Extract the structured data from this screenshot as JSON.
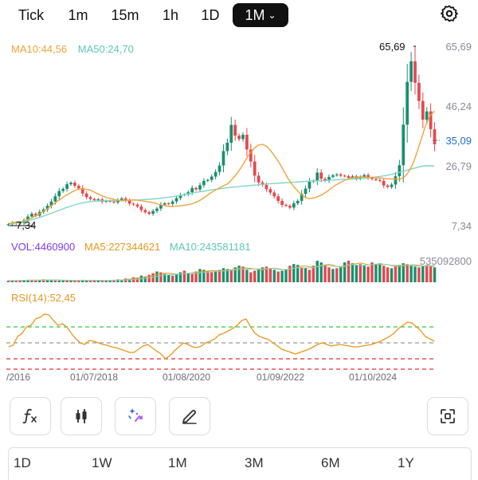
{
  "timeframe_tabs": [
    {
      "label": "Tick"
    },
    {
      "label": "1m"
    },
    {
      "label": "15m"
    },
    {
      "label": "1h"
    },
    {
      "label": "1D"
    },
    {
      "label": "1M"
    }
  ],
  "active_tab_chevron": "⌄",
  "colors": {
    "up": "#1a8f6e",
    "down": "#e5484d",
    "ma10": "#f0a33a",
    "ma50": "#7fd6c6",
    "vol_ma5": "#e8971d",
    "vol_ma10": "#7fd6c6",
    "rsi": "#e8971d",
    "rsi_upper": "#2ecc40",
    "rsi_mid": "#9a9a9a",
    "rsi_lower": "#e03131",
    "accent_price": "#1f6fd1",
    "vol_label": "#7c3aed"
  },
  "price_panel": {
    "ma10_label": "MA10:44,56",
    "ma50_label": "MA50:24,70",
    "y_ticks": [
      "65,69",
      "46,24",
      "35,09",
      "26,79",
      "7,34"
    ],
    "high_marker": "65,69",
    "low_marker": "7,34"
  },
  "volume_panel": {
    "vol_label": "VOL:4460900",
    "ma5_label": "MA5:227344621",
    "ma10_label": "MA10:243581181",
    "max_tick": "535092800"
  },
  "rsi_panel": {
    "label": "RSI(14):52,45"
  },
  "x_ticks": [
    "/2016",
    "01/07/2018",
    "01/08/2020",
    "01/09/2022",
    "01/10/2024"
  ],
  "toolbar": [
    {
      "icon": "fx-icon"
    },
    {
      "icon": "candlestick-icon"
    },
    {
      "icon": "magic-drawing-icon"
    },
    {
      "icon": "pencil-icon"
    },
    {
      "icon": "fullscreen-icon"
    }
  ],
  "periods": [
    {
      "label": "1D"
    },
    {
      "label": "1W"
    },
    {
      "label": "1M"
    },
    {
      "label": "3M"
    },
    {
      "label": "6M"
    },
    {
      "label": "1Y"
    }
  ],
  "chart_data": {
    "type": "candlestick",
    "y_range": [
      7.34,
      65.69
    ],
    "close": [
      7.8,
      8.3,
      8.0,
      8.2,
      9.1,
      10.3,
      11.2,
      10.6,
      11.8,
      12.6,
      13.8,
      15.2,
      16.9,
      18.6,
      19.3,
      20.8,
      21.3,
      20.3,
      19.5,
      17.8,
      16.6,
      16.0,
      15.6,
      15.9,
      15.1,
      15.4,
      15.2,
      14.9,
      15.7,
      16.2,
      15.5,
      14.5,
      14.2,
      13.6,
      12.4,
      11.7,
      11.2,
      12.1,
      12.9,
      14.2,
      14.6,
      14.4,
      15.2,
      16.3,
      17.3,
      17.5,
      18.2,
      19.6,
      19.1,
      20.5,
      21.9,
      22.2,
      23.3,
      24.8,
      26.9,
      31.6,
      34.3,
      40.1,
      36.6,
      35.5,
      36.9,
      32.1,
      28.2,
      23.6,
      21.4,
      20.6,
      19.2,
      18.1,
      16.9,
      15.4,
      14.1,
      13.8,
      13.2,
      14.6,
      15.4,
      17.7,
      19.4,
      21.6,
      21.9,
      24.6,
      22.6,
      22.0,
      23.2,
      23.7,
      24.0,
      23.6,
      23.4,
      22.9,
      23.4,
      22.6,
      23.2,
      23.8,
      22.9,
      22.5,
      22.2,
      21.9,
      20.4,
      19.9,
      20.7,
      23.4,
      27.0,
      40.2,
      54.1,
      60.8,
      53.8,
      47.9,
      41.8,
      44.5,
      38.7,
      33.8
    ],
    "ma10": [
      8.0,
      8.3,
      8.5,
      8.6,
      9.0,
      9.6,
      10.3,
      11.0,
      11.9,
      12.8,
      13.9,
      14.9,
      15.9,
      16.9,
      17.7,
      18.5,
      19.2,
      19.3,
      19.2,
      18.9,
      18.2,
      17.5,
      16.9,
      16.4,
      16.1,
      15.7,
      15.5,
      15.5,
      15.6,
      15.7,
      15.6,
      15.4,
      15.2,
      15.0,
      14.7,
      14.2,
      13.9,
      13.7,
      13.6,
      13.7,
      13.8,
      14.0,
      14.2,
      14.6,
      15.2,
      16.0,
      17.0,
      18.0,
      18.8,
      19.6,
      20.3,
      21.0,
      22.5,
      24.1,
      26.1,
      28.4,
      30.6,
      32.3,
      33.5,
      33.8,
      33.2,
      31.6,
      29.7,
      27.6,
      25.1,
      22.6,
      20.6,
      18.9,
      17.5,
      16.5,
      16.1,
      16.4,
      16.8,
      17.5,
      18.4,
      19.5,
      20.5,
      21.3,
      22.0,
      22.6,
      22.9,
      23.1,
      23.2,
      23.1,
      23.0,
      23.0,
      22.9,
      22.8,
      22.6,
      22.5,
      22.5,
      22.5,
      23.1,
      24.8,
      27.4,
      31.4,
      35.8,
      40.1,
      43.1,
      44.6
    ],
    "ma50": [
      8.0,
      8.1,
      8.3,
      8.6,
      8.9,
      9.3,
      9.8,
      10.3,
      10.9,
      11.4,
      12.0,
      12.6,
      13.2,
      13.7,
      14.2,
      14.6,
      14.9,
      15.1,
      15.3,
      15.4,
      15.4,
      15.5,
      15.5,
      15.5,
      15.6,
      15.6,
      15.7,
      15.7,
      15.8,
      15.9,
      16.0,
      16.1,
      16.3,
      16.5,
      16.7,
      17.0,
      17.2,
      17.5,
      17.8,
      18.1,
      18.4,
      18.6,
      18.9,
      19.1,
      19.3,
      19.5,
      19.7,
      19.9,
      20.0,
      20.2,
      20.3,
      20.5,
      20.6,
      20.8,
      20.9,
      21.0,
      21.1,
      21.2,
      21.3,
      21.4,
      21.5,
      21.6,
      21.7,
      21.8,
      21.9,
      22.0,
      22.0,
      22.1,
      22.2,
      22.3,
      22.4,
      22.4,
      22.5,
      22.6,
      22.7,
      22.8,
      23.0,
      23.2,
      23.4,
      23.7,
      24.0,
      24.4,
      24.8,
      25.2,
      25.7,
      26.1,
      26.5,
      26.8,
      26.8,
      26.8
    ],
    "volume": [
      20,
      20,
      22,
      25,
      28,
      30,
      25,
      22,
      28,
      35,
      30,
      25,
      20,
      18,
      22,
      25,
      20,
      18,
      22,
      30,
      25,
      20,
      22,
      24,
      20,
      18,
      25,
      30,
      35,
      30,
      45,
      40,
      60,
      55,
      80,
      70,
      90,
      110,
      130,
      120,
      100,
      90,
      80,
      95,
      120,
      140,
      110,
      100,
      130,
      160,
      150,
      140,
      120,
      130,
      150,
      170,
      160,
      140,
      180,
      200,
      190,
      150,
      120,
      140,
      160,
      180,
      190,
      170,
      150,
      130,
      140,
      160,
      200,
      220,
      210,
      180,
      170,
      150,
      200,
      260,
      240,
      200,
      180,
      160,
      170,
      190,
      240,
      260,
      230,
      210,
      220,
      200,
      190,
      240,
      220,
      230,
      200,
      180,
      170,
      190,
      210,
      230,
      220,
      200,
      190,
      180,
      200,
      210,
      190,
      180
    ],
    "rsi": [
      45,
      47,
      58,
      62,
      70,
      72,
      80,
      82,
      86,
      85,
      78,
      72,
      74,
      70,
      62,
      55,
      50,
      48,
      53,
      52,
      50,
      48,
      47,
      45,
      44,
      42,
      40,
      38,
      38,
      42,
      46,
      48,
      44,
      40,
      36,
      30,
      34,
      40,
      45,
      50,
      48,
      45,
      44,
      46,
      50,
      52,
      55,
      60,
      62,
      65,
      68,
      72,
      78,
      80,
      70,
      62,
      58,
      56,
      54,
      50,
      46,
      42,
      40,
      38,
      36,
      38,
      40,
      42,
      45,
      48,
      50,
      48,
      46,
      47,
      48,
      47,
      46,
      45,
      45,
      46,
      47,
      48,
      50,
      52,
      55,
      58,
      62,
      68,
      72,
      76,
      75,
      70,
      65,
      58,
      55,
      52
    ],
    "rsi_levels": [
      70,
      50,
      30
    ]
  }
}
